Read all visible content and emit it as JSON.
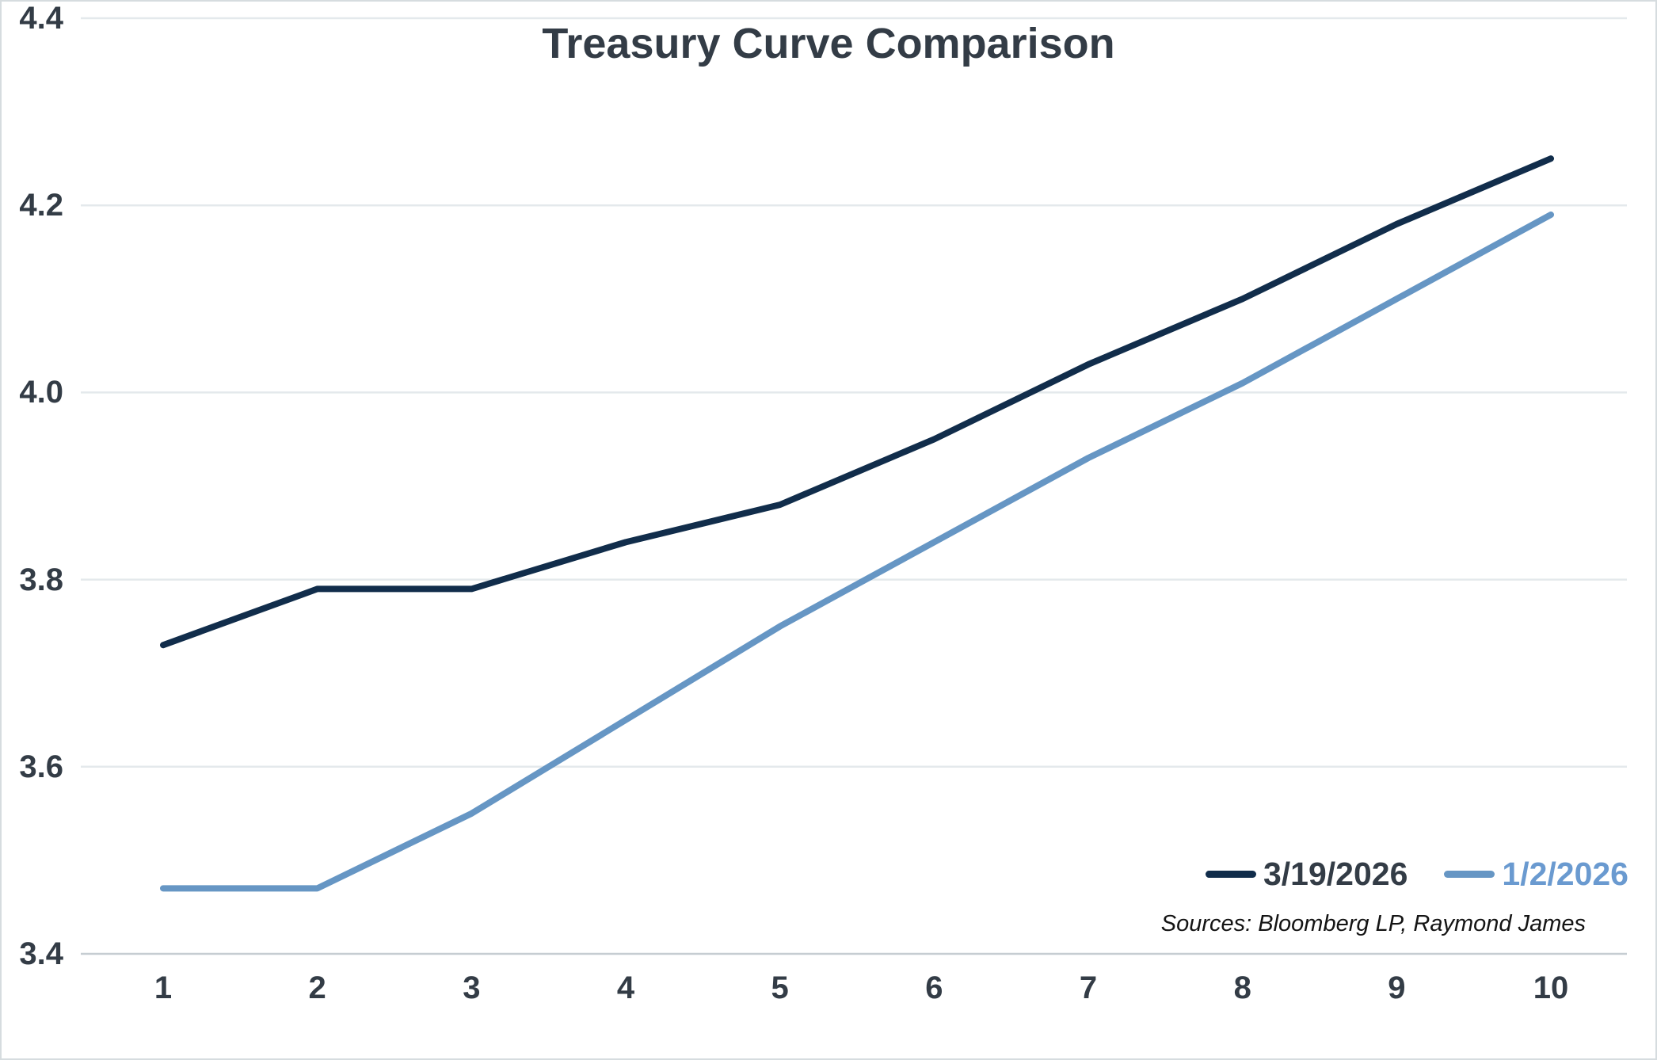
{
  "chart_data": {
    "type": "line",
    "title": "Treasury Curve Comparison",
    "x": [
      1,
      2,
      3,
      4,
      5,
      6,
      7,
      8,
      9,
      10
    ],
    "xlabel": "",
    "ylabel": "",
    "ylim": [
      3.4,
      4.4
    ],
    "y_tick_labels": [
      "3.4",
      "3.6",
      "3.8",
      "4.0",
      "4.2",
      "4.4"
    ],
    "grid": "horizontal",
    "legend_position": "bottom-right",
    "series": [
      {
        "name": "3/19/2026",
        "color": "#112d4b",
        "legend_text_color": "#333c46",
        "values": [
          3.73,
          3.79,
          3.79,
          3.84,
          3.88,
          3.95,
          4.03,
          4.1,
          4.18,
          4.25
        ]
      },
      {
        "name": "1/2/2026",
        "color": "#6696c4",
        "legend_text_color": "#6a9ad0",
        "values": [
          3.47,
          3.47,
          3.55,
          3.65,
          3.75,
          3.84,
          3.93,
          4.01,
          4.1,
          4.19
        ]
      }
    ],
    "source_note": "Sources: Bloomberg LP, Raymond James"
  },
  "colors": {
    "background": "#ffffff",
    "frame_border": "#d6dcdf",
    "gridline": "#e4e9ec",
    "bottom_axis_line": "#c6cdd2",
    "text": "#333c46",
    "source_text": "#141414"
  }
}
